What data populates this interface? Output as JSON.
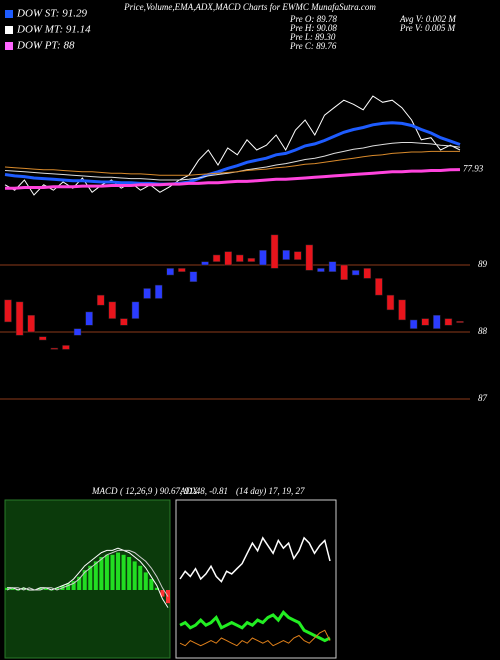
{
  "header": {
    "title": "Price,Volume,EMA,ADX,MACD Charts for EWMC MunafaSutra.com",
    "legend": [
      {
        "label": "DOW ST: 91.29",
        "color": "#1e5cff"
      },
      {
        "label": "DOW MT: 91.14",
        "color": "#ffffff"
      },
      {
        "label": "DOW PT: 88",
        "color": "#ff66ff"
      }
    ],
    "stats": [
      "Pre  O: 89.78",
      "Pre  H: 90.08",
      "Pre  L: 89.30",
      "Pre  C: 89.76",
      "Avg V: 0.002  M",
      "Pre  V: 0.005  M"
    ]
  },
  "chart_data": [
    {
      "type": "line",
      "ylim": [
        72,
        94
      ],
      "series": [
        {
          "color": "#ffffff",
          "width": 1,
          "values": [
            75.7,
            74.9,
            76.4,
            74.2,
            75.7,
            74.9,
            76.1,
            75.2,
            76.7,
            74.6,
            75.7,
            76.4,
            75.2,
            76.0,
            74.9,
            75.7,
            74.6,
            75.4,
            76.4,
            77.1,
            79.3,
            80.8,
            78.6,
            81.1,
            80.1,
            82.3,
            80.8,
            81.5,
            83.0,
            80.8,
            83.7,
            85.2,
            83.0,
            85.9,
            87.0,
            88.1,
            87.5,
            86.7,
            88.7,
            87.8,
            88.1,
            87.0,
            85.2,
            82.3,
            82.6,
            80.8,
            81.5,
            80.8
          ]
        },
        {
          "color": "#1e5cff",
          "width": 3,
          "values": [
            77.2,
            77.0,
            76.9,
            76.7,
            76.6,
            76.5,
            76.4,
            76.3,
            76.3,
            76.2,
            76.1,
            76.1,
            76.0,
            76.0,
            75.9,
            75.9,
            75.8,
            75.8,
            75.9,
            76.1,
            76.6,
            77.2,
            77.6,
            78.1,
            78.5,
            79.0,
            79.3,
            79.6,
            80.1,
            80.3,
            80.8,
            81.4,
            81.7,
            82.2,
            82.8,
            83.4,
            83.8,
            84.1,
            84.5,
            84.7,
            84.8,
            84.7,
            84.4,
            83.8,
            83.3,
            82.6,
            82.1,
            81.6
          ]
        },
        {
          "color": "#dddddd",
          "width": 1,
          "values": [
            77.8,
            77.7,
            77.6,
            77.5,
            77.4,
            77.3,
            77.2,
            77.1,
            77.0,
            76.9,
            76.8,
            76.8,
            76.7,
            76.6,
            76.6,
            76.5,
            76.4,
            76.4,
            76.4,
            76.5,
            76.7,
            77.0,
            77.2,
            77.4,
            77.6,
            77.9,
            78.1,
            78.3,
            78.6,
            78.8,
            79.1,
            79.4,
            79.6,
            79.9,
            80.3,
            80.6,
            80.9,
            81.1,
            81.4,
            81.6,
            81.8,
            81.9,
            81.9,
            81.8,
            81.7,
            81.5,
            81.4,
            81.2
          ]
        },
        {
          "color": "#d98a2b",
          "width": 1,
          "values": [
            78.3,
            78.2,
            78.1,
            78.0,
            77.9,
            77.9,
            77.8,
            77.7,
            77.6,
            77.6,
            77.5,
            77.4,
            77.4,
            77.3,
            77.3,
            77.2,
            77.1,
            77.1,
            77.1,
            77.1,
            77.2,
            77.3,
            77.4,
            77.5,
            77.6,
            77.8,
            77.9,
            78.0,
            78.2,
            78.3,
            78.5,
            78.7,
            78.8,
            79.0,
            79.2,
            79.4,
            79.6,
            79.8,
            80.0,
            80.1,
            80.3,
            80.4,
            80.5,
            80.5,
            80.6,
            80.6,
            80.6,
            80.6
          ]
        },
        {
          "color": "#ff44dd",
          "width": 3,
          "values": [
            75.2,
            75.2,
            75.3,
            75.3,
            75.3,
            75.4,
            75.4,
            75.4,
            75.5,
            75.5,
            75.5,
            75.6,
            75.6,
            75.6,
            75.7,
            75.7,
            75.7,
            75.8,
            75.8,
            75.9,
            75.9,
            76.0,
            76.0,
            76.1,
            76.2,
            76.2,
            76.3,
            76.4,
            76.5,
            76.5,
            76.6,
            76.7,
            76.8,
            76.9,
            77.0,
            77.1,
            77.2,
            77.3,
            77.4,
            77.5,
            77.6,
            77.6,
            77.7,
            77.7,
            77.8,
            77.8,
            77.9,
            77.93
          ]
        }
      ]
    },
    {
      "type": "candlestick",
      "ylim": [
        86.84,
        89.52
      ],
      "yticks": [
        89,
        88,
        87
      ],
      "up_color": "#2b3cff",
      "down_color": "#e8141c",
      "open": [
        88.48,
        88.45,
        88.25,
        87.93,
        87.76,
        87.8,
        87.95,
        88.1,
        88.55,
        88.45,
        88.2,
        88.2,
        88.5,
        88.5,
        88.85,
        88.95,
        88.75,
        89.0,
        89.15,
        89.2,
        89.15,
        89.1,
        89.0,
        89.45,
        89.08,
        89.2,
        89.3,
        88.9,
        88.9,
        89.0,
        88.85,
        88.95,
        88.8,
        88.55,
        88.48,
        88.05,
        88.2,
        88.05,
        88.2,
        88.16
      ],
      "close": [
        88.15,
        87.95,
        88.0,
        87.88,
        87.74,
        87.74,
        88.05,
        88.3,
        88.4,
        88.2,
        88.1,
        88.45,
        88.65,
        88.7,
        88.95,
        88.9,
        88.9,
        89.05,
        89.05,
        89.0,
        89.05,
        89.05,
        89.22,
        88.95,
        89.22,
        89.08,
        88.92,
        88.95,
        89.05,
        88.78,
        88.92,
        88.8,
        88.55,
        88.33,
        88.18,
        88.18,
        88.1,
        88.25,
        88.1,
        88.14
      ]
    },
    {
      "type": "macd",
      "label": "MACD",
      "params": "( 12,26,9 ) 90.67, 91.48, -0.81",
      "ylim": [
        -3,
        4
      ],
      "bar_color": "#22dd22",
      "neg_color": "#ff3333",
      "series": [
        {
          "color": "#ffffff",
          "values": [
            0.1,
            0.1,
            0.0,
            0.1,
            0.0,
            0.0,
            0.1,
            0.1,
            0.0,
            0.1,
            0.2,
            0.3,
            0.5,
            0.8,
            1.1,
            1.3,
            1.5,
            1.7,
            1.8,
            1.8,
            1.9,
            1.8,
            1.7,
            1.5,
            1.3,
            1.0,
            0.6,
            0.2,
            -0.4,
            -0.8
          ]
        },
        {
          "color": "#cccccc",
          "values": [
            0.0,
            0.1,
            0.1,
            0.0,
            0.1,
            0.0,
            0.0,
            0.1,
            0.1,
            0.0,
            0.1,
            0.2,
            0.3,
            0.5,
            0.8,
            1.0,
            1.2,
            1.4,
            1.6,
            1.7,
            1.8,
            1.8,
            1.8,
            1.7,
            1.5,
            1.3,
            1.0,
            0.6,
            0.1,
            -0.3
          ]
        }
      ],
      "bars": [
        0.1,
        0.1,
        0.0,
        0.1,
        0.0,
        0.0,
        0.1,
        0.1,
        0.0,
        0.1,
        0.2,
        0.3,
        0.4,
        0.6,
        0.9,
        1.1,
        1.3,
        1.5,
        1.6,
        1.6,
        1.7,
        1.6,
        1.5,
        1.3,
        1.1,
        0.8,
        0.5,
        0.1,
        -0.3,
        -0.6
      ]
    },
    {
      "type": "adx",
      "label": "ADX",
      "params": "(14  day) 17, 19, 27",
      "ylim": [
        0,
        60
      ],
      "series": [
        {
          "color": "#ffffff",
          "width": 1.5,
          "values": [
            30,
            33,
            31,
            34,
            30,
            32,
            35,
            31,
            29,
            33,
            32,
            34,
            36,
            40,
            44,
            41,
            46,
            43,
            40,
            45,
            42,
            44,
            38,
            41,
            46,
            44,
            40,
            43,
            45,
            37
          ]
        },
        {
          "color": "#22ee22",
          "width": 3,
          "values": [
            12,
            13,
            11,
            12,
            14,
            12,
            13,
            15,
            11,
            12,
            13,
            12,
            11,
            13,
            12,
            14,
            13,
            15,
            16,
            14,
            17,
            15,
            14,
            13,
            10,
            9,
            8,
            7,
            6,
            7
          ]
        },
        {
          "color": "#e0801a",
          "width": 1,
          "values": [
            5,
            4,
            6,
            5,
            4,
            5,
            6,
            5,
            7,
            6,
            5,
            4,
            6,
            5,
            7,
            6,
            5,
            6,
            4,
            5,
            6,
            5,
            7,
            8,
            6,
            5,
            7,
            9,
            10,
            6
          ]
        }
      ]
    }
  ]
}
